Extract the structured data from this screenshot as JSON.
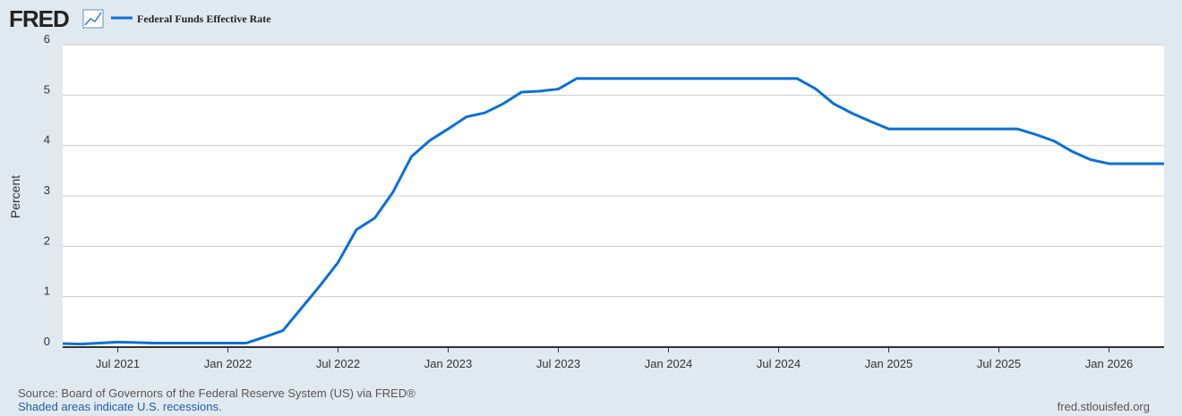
{
  "logo": "FRED",
  "chart_data": {
    "type": "line",
    "y_label": "Percent",
    "x": [
      "2021-04",
      "2021-05",
      "2021-06",
      "2021-07",
      "2021-08",
      "2021-09",
      "2021-10",
      "2021-11",
      "2021-12",
      "2022-01",
      "2022-02",
      "2022-03",
      "2022-04",
      "2022-05",
      "2022-06",
      "2022-07",
      "2022-08",
      "2022-09",
      "2022-10",
      "2022-11",
      "2022-12",
      "2023-01",
      "2023-02",
      "2023-03",
      "2023-04",
      "2023-05",
      "2023-06",
      "2023-07",
      "2023-08",
      "2023-09",
      "2023-10",
      "2023-11",
      "2023-12",
      "2024-01",
      "2024-02",
      "2024-03",
      "2024-04",
      "2024-05",
      "2024-06",
      "2024-07",
      "2024-08",
      "2024-09",
      "2024-10",
      "2024-11",
      "2024-12",
      "2025-01",
      "2025-02",
      "2025-03",
      "2025-04",
      "2025-05",
      "2025-06",
      "2025-07",
      "2025-08",
      "2025-09",
      "2025-10",
      "2025-11",
      "2025-12",
      "2026-01",
      "2026-02",
      "2026-03",
      "2026-04"
    ],
    "series": [
      {
        "name": "Federal Funds Effective Rate",
        "color": "#0b6fd8",
        "values": [
          0.07,
          0.06,
          0.08,
          0.1,
          0.09,
          0.08,
          0.08,
          0.08,
          0.08,
          0.08,
          0.08,
          0.2,
          0.33,
          0.77,
          1.21,
          1.68,
          2.33,
          2.56,
          3.08,
          3.78,
          4.1,
          4.33,
          4.57,
          4.65,
          4.83,
          5.06,
          5.08,
          5.12,
          5.33,
          5.33,
          5.33,
          5.33,
          5.33,
          5.33,
          5.33,
          5.33,
          5.33,
          5.33,
          5.33,
          5.33,
          5.33,
          5.13,
          4.83,
          4.64,
          4.48,
          4.33,
          4.33,
          4.33,
          4.33,
          4.33,
          4.33,
          4.33,
          4.33,
          4.22,
          4.09,
          3.88,
          3.72,
          3.64,
          3.64,
          3.64,
          3.64
        ]
      }
    ],
    "xlim": [
      "2021-04",
      "2026-04"
    ],
    "xticks": [
      {
        "value": "2021-07",
        "label": "Jul 2021"
      },
      {
        "value": "2022-01",
        "label": "Jan 2022"
      },
      {
        "value": "2022-07",
        "label": "Jul 2022"
      },
      {
        "value": "2023-01",
        "label": "Jan 2023"
      },
      {
        "value": "2023-07",
        "label": "Jul 2023"
      },
      {
        "value": "2024-01",
        "label": "Jan 2024"
      },
      {
        "value": "2024-07",
        "label": "Jul 2024"
      },
      {
        "value": "2025-01",
        "label": "Jan 2025"
      },
      {
        "value": "2025-07",
        "label": "Jul 2025"
      },
      {
        "value": "2026-01",
        "label": "Jan 2026"
      }
    ],
    "ylim": [
      0,
      6
    ],
    "yticks": [
      0,
      1,
      2,
      3,
      4,
      5,
      6
    ],
    "grid": true
  },
  "footer": {
    "source": "Source: Board of Governors of the Federal Reserve System (US) via FRED®",
    "note": "Shaded areas indicate U.S. recessions.",
    "url": "fred.stlouisfed.org"
  }
}
